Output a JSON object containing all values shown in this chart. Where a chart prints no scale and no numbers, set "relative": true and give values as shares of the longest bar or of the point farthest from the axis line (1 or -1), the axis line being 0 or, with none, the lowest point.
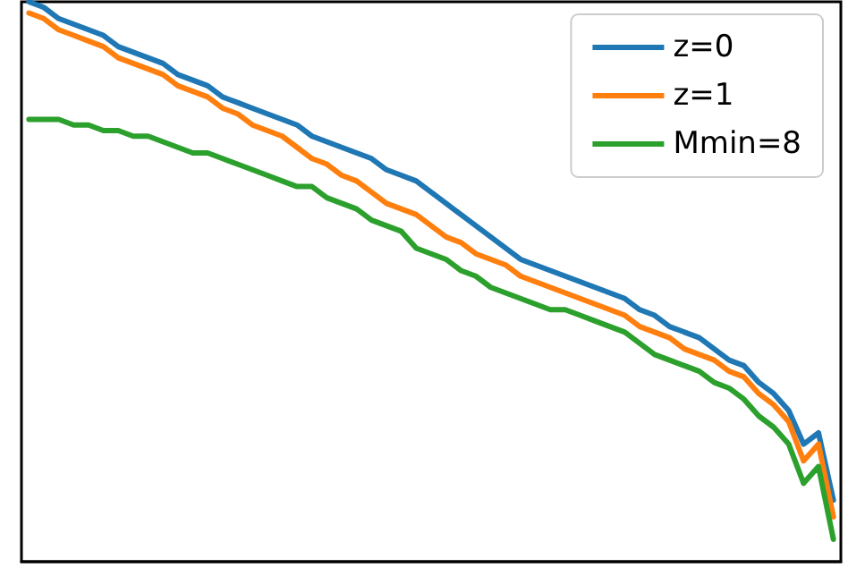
{
  "chart_data": {
    "type": "line",
    "relative": true,
    "legend": "top right",
    "grid": false,
    "marker": "none",
    "line_style": "solid",
    "categories": [
      null,
      null,
      null,
      null,
      null,
      null,
      null,
      null,
      null,
      null,
      null,
      null,
      null,
      null,
      null,
      null,
      null,
      null,
      null,
      null,
      null,
      null,
      null,
      null,
      null,
      null,
      null,
      null,
      null,
      null,
      null,
      null,
      null,
      null,
      null,
      null,
      null,
      null,
      null,
      null,
      null,
      null,
      null,
      null,
      null,
      null,
      null,
      null,
      null,
      null,
      null,
      null,
      null,
      null,
      null
    ],
    "series": [
      {
        "name": "z=0",
        "color": "#1f77b4",
        "values": [
          1.0,
          0.99,
          0.97,
          0.96,
          0.95,
          0.94,
          0.92,
          0.91,
          0.9,
          0.89,
          0.87,
          0.86,
          0.85,
          0.83,
          0.82,
          0.81,
          0.8,
          0.79,
          0.78,
          0.76,
          0.75,
          0.74,
          0.73,
          0.72,
          0.7,
          0.69,
          0.68,
          0.66,
          0.64,
          0.62,
          0.6,
          0.58,
          0.56,
          0.54,
          0.53,
          0.52,
          0.51,
          0.5,
          0.49,
          0.48,
          0.47,
          0.45,
          0.44,
          0.42,
          0.41,
          0.4,
          0.38,
          0.36,
          0.35,
          0.32,
          0.3,
          0.27,
          0.21,
          0.23,
          0.11
        ]
      },
      {
        "name": "z=1",
        "color": "#ff7f0e",
        "values": [
          0.98,
          0.97,
          0.95,
          0.94,
          0.93,
          0.92,
          0.9,
          0.89,
          0.88,
          0.87,
          0.85,
          0.84,
          0.83,
          0.81,
          0.8,
          0.78,
          0.77,
          0.76,
          0.74,
          0.72,
          0.71,
          0.69,
          0.68,
          0.66,
          0.64,
          0.63,
          0.62,
          0.6,
          0.58,
          0.57,
          0.55,
          0.54,
          0.53,
          0.51,
          0.5,
          0.49,
          0.48,
          0.47,
          0.46,
          0.45,
          0.44,
          0.42,
          0.41,
          0.4,
          0.38,
          0.37,
          0.36,
          0.34,
          0.33,
          0.3,
          0.28,
          0.25,
          0.18,
          0.21,
          0.08
        ]
      },
      {
        "name": "Mmin=8",
        "color": "#2ca02c",
        "values": [
          0.79,
          0.79,
          0.79,
          0.78,
          0.78,
          0.77,
          0.77,
          0.76,
          0.76,
          0.75,
          0.74,
          0.73,
          0.73,
          0.72,
          0.71,
          0.7,
          0.69,
          0.68,
          0.67,
          0.67,
          0.65,
          0.64,
          0.63,
          0.61,
          0.6,
          0.59,
          0.56,
          0.55,
          0.54,
          0.52,
          0.51,
          0.49,
          0.48,
          0.47,
          0.46,
          0.45,
          0.45,
          0.44,
          0.43,
          0.42,
          0.41,
          0.39,
          0.37,
          0.36,
          0.35,
          0.34,
          0.32,
          0.31,
          0.29,
          0.26,
          0.24,
          0.21,
          0.14,
          0.17,
          0.04
        ]
      }
    ]
  }
}
